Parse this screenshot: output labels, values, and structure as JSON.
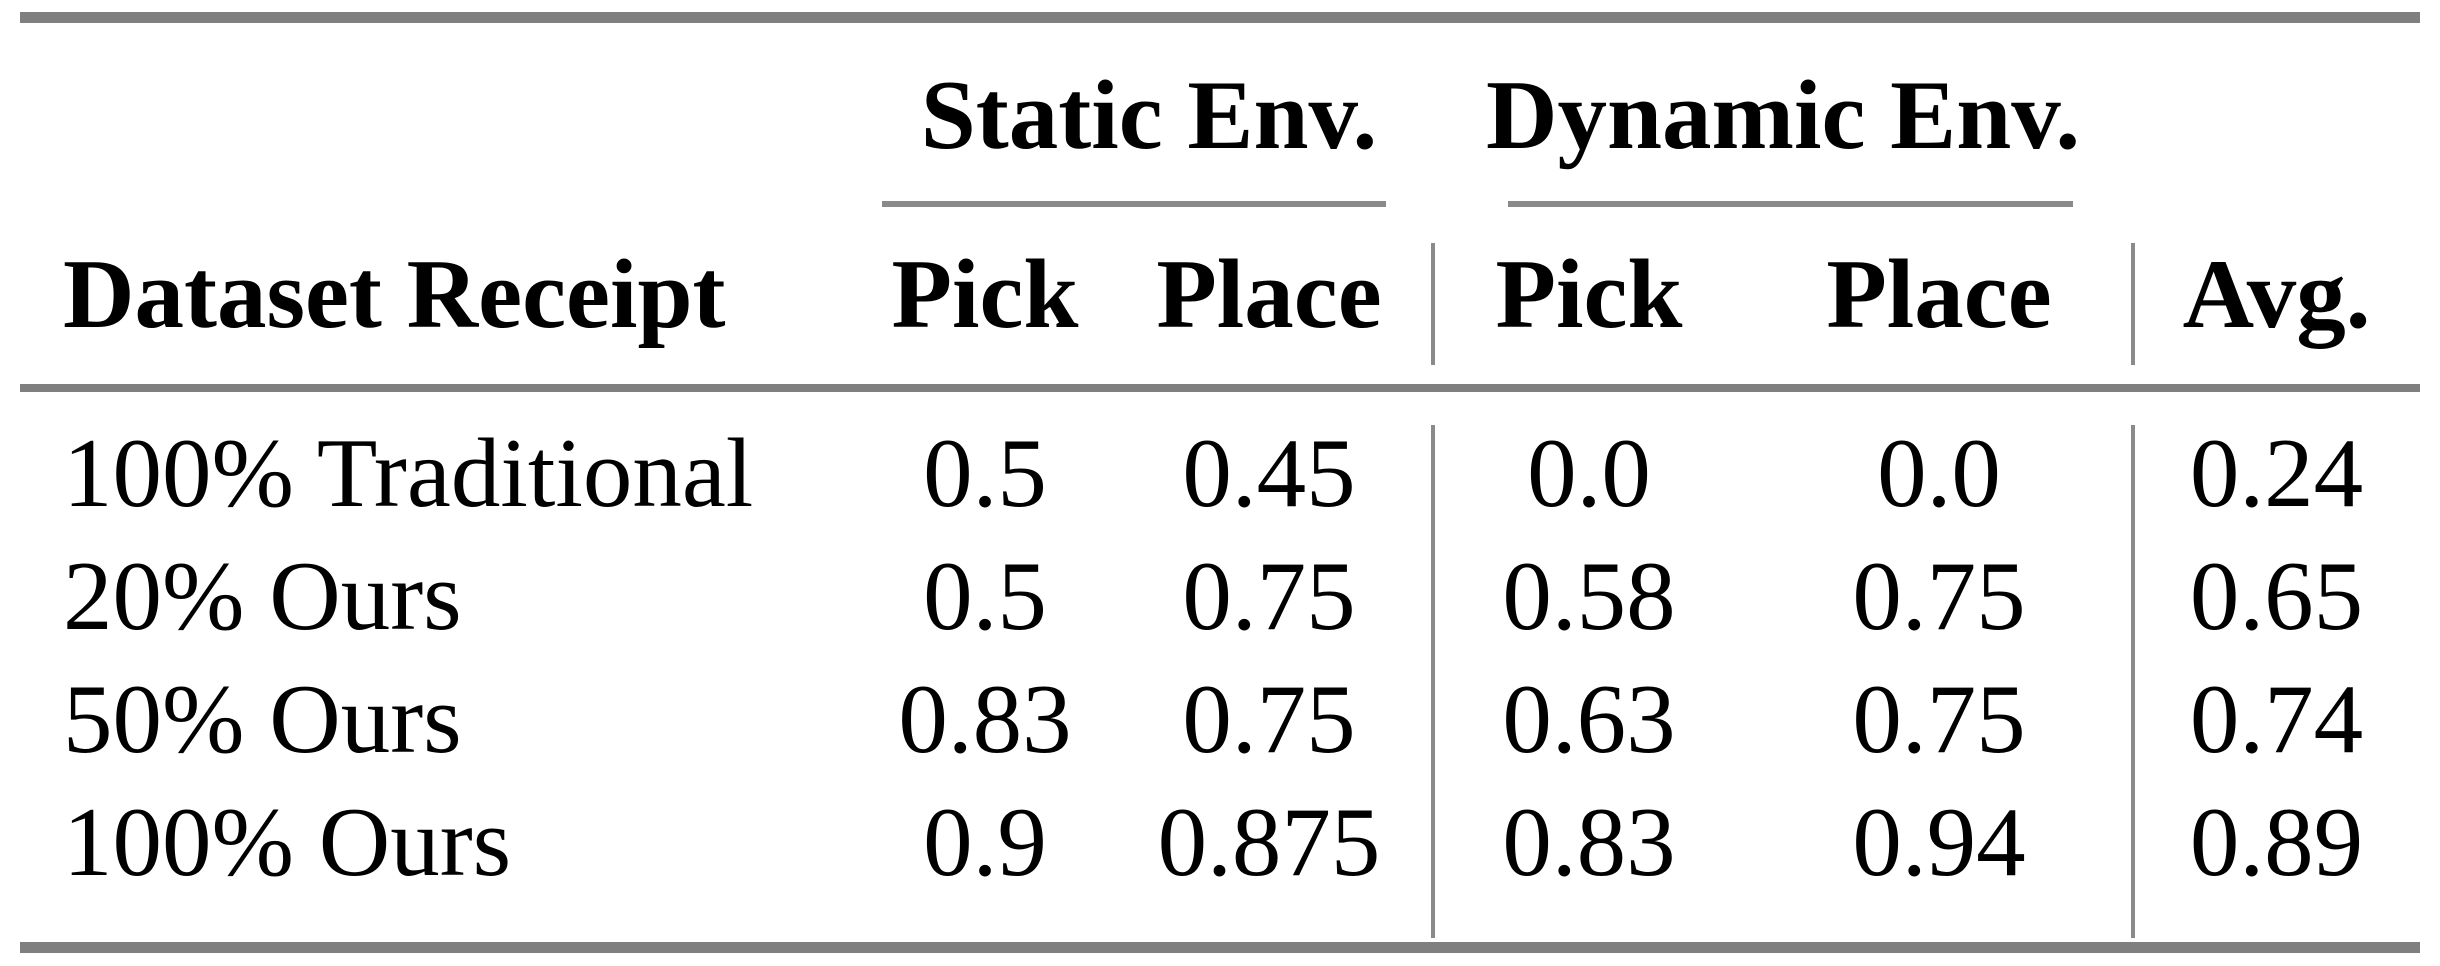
{
  "table": {
    "group_headers": [
      "Static Env.",
      "Dynamic Env."
    ],
    "column_headers": [
      "Dataset Receipt",
      "Pick",
      "Place",
      "Pick",
      "Place",
      "Avg."
    ],
    "rows": [
      {
        "cells": [
          "100% Traditional",
          "0.5",
          "0.45",
          "0.0",
          "0.0",
          "0.24"
        ]
      },
      {
        "cells": [
          "20% Ours",
          "0.5",
          "0.75",
          "0.58",
          "0.75",
          "0.65"
        ]
      },
      {
        "cells": [
          "50% Ours",
          "0.83",
          "0.75",
          "0.63",
          "0.75",
          "0.74"
        ]
      },
      {
        "cells": [
          "100% Ours",
          "0.9",
          "0.875",
          "0.83",
          "0.94",
          "0.89"
        ]
      }
    ]
  },
  "colors": {
    "rule": "#7f7f7f",
    "separator": "#8a8a8a",
    "text": "#000000",
    "background": "#ffffff"
  }
}
